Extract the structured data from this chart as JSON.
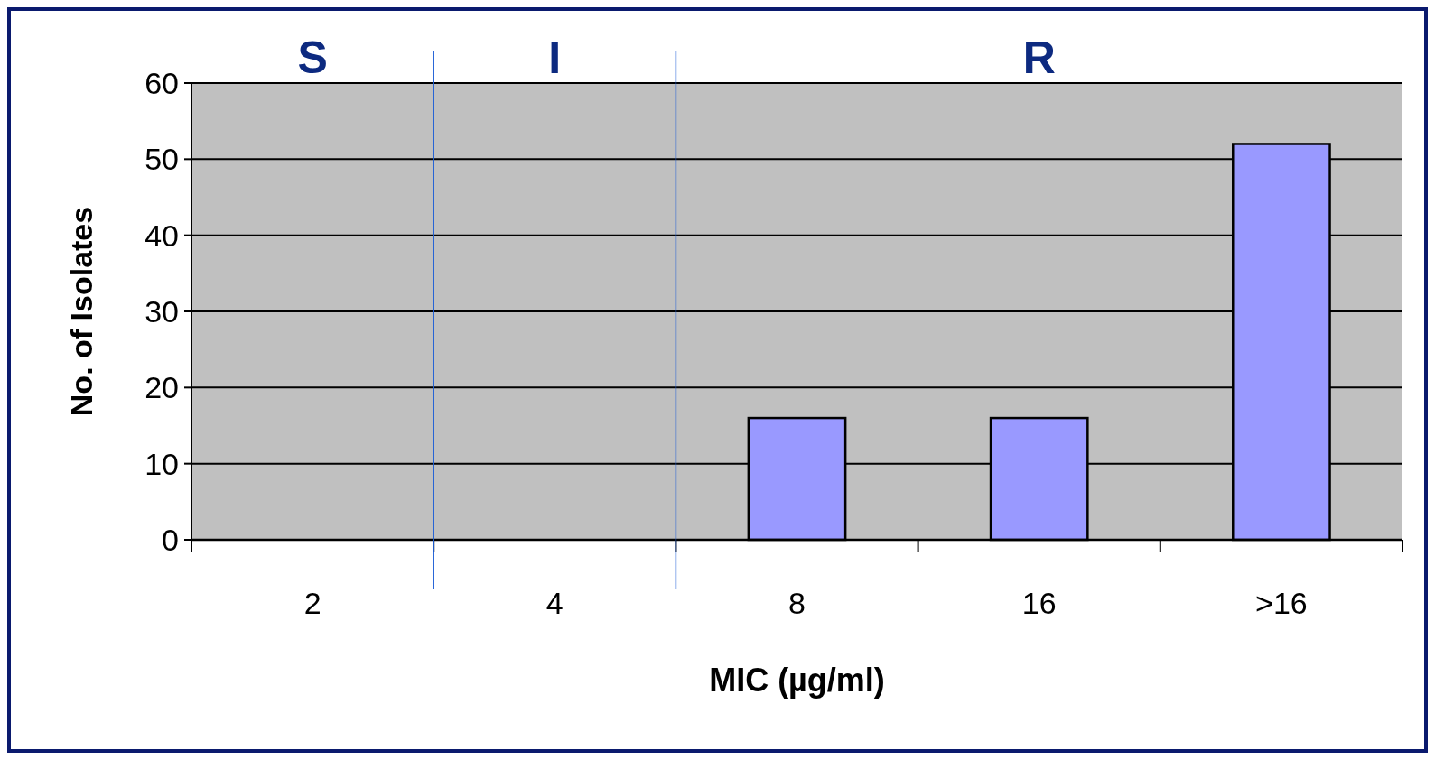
{
  "chart_data": {
    "type": "bar",
    "xlabel": "MIC (µg/ml)",
    "ylabel": "No. of Isolates",
    "categories": [
      "2",
      "4",
      "8",
      "16",
      ">16"
    ],
    "values": [
      0,
      0,
      16,
      16,
      52
    ],
    "color": "#9999ff",
    "ylim": [
      0,
      60
    ],
    "yticks": [
      0,
      10,
      20,
      30,
      40,
      50,
      60
    ],
    "grid": "y",
    "annotations": [
      "S",
      "I",
      "R"
    ]
  }
}
